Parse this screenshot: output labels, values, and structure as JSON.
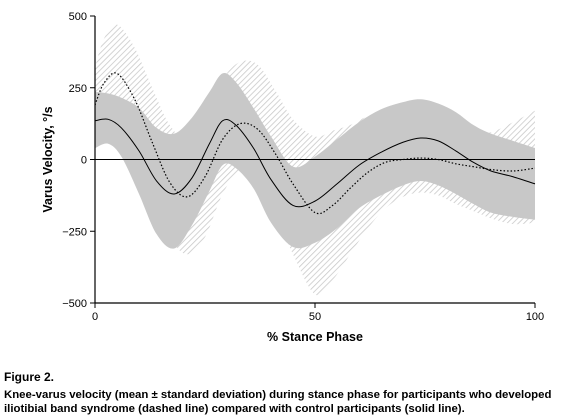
{
  "figure": {
    "label": "Figure 2.",
    "caption": "Knee-varus velocity (mean ± standard deviation) during stance phase for participants who developed iliotibial band syndrome (dashed line) compared with control participants (solid line)."
  },
  "chart_data": {
    "type": "line",
    "xlabel": "% Stance Phase",
    "ylabel": "Varus Velocity, °/s",
    "xlim": [
      0,
      100
    ],
    "ylim": [
      -500,
      500
    ],
    "xticks": [
      "0",
      "50",
      "100"
    ],
    "yticks": [
      "-500",
      "-250",
      "0",
      "250",
      "500"
    ],
    "grid": false,
    "reference_line_y": 0,
    "series": [
      {
        "style": "solid",
        "x": [
          0,
          3,
          6,
          10,
          14,
          18,
          22,
          26,
          29,
          32,
          36,
          40,
          45,
          50,
          55,
          60,
          65,
          70,
          74,
          78,
          82,
          86,
          90,
          95,
          100
        ],
        "mean": [
          135,
          140,
          110,
          30,
          -75,
          -120,
          -65,
          55,
          135,
          120,
          40,
          -70,
          -160,
          -145,
          -85,
          -20,
          25,
          60,
          75,
          65,
          30,
          -10,
          -40,
          -60,
          -85
        ],
        "lower": [
          40,
          55,
          10,
          -120,
          -260,
          -310,
          -230,
          -110,
          -20,
          -30,
          -100,
          -220,
          -305,
          -290,
          -240,
          -170,
          -125,
          -90,
          -75,
          -90,
          -120,
          -155,
          -185,
          -200,
          -210
        ],
        "upper": [
          235,
          230,
          215,
          180,
          110,
          90,
          145,
          235,
          300,
          270,
          180,
          80,
          -25,
          10,
          70,
          130,
          175,
          200,
          210,
          195,
          165,
          120,
          90,
          65,
          40
        ]
      },
      {
        "style": "dashed",
        "x": [
          0,
          2,
          5,
          9,
          13,
          17,
          21,
          25,
          29,
          33,
          37,
          41,
          45,
          50,
          54,
          58,
          62,
          66,
          70,
          74,
          78,
          82,
          86,
          90,
          95,
          100
        ],
        "mean": [
          190,
          265,
          300,
          210,
          60,
          -80,
          -130,
          -60,
          70,
          125,
          105,
          20,
          -85,
          -185,
          -160,
          -100,
          -45,
          -10,
          0,
          5,
          0,
          -15,
          -25,
          -35,
          -40,
          -30
        ],
        "lower": [
          60,
          120,
          150,
          40,
          -120,
          -270,
          -330,
          -270,
          -120,
          -40,
          -80,
          -190,
          -330,
          -470,
          -420,
          -330,
          -240,
          -170,
          -130,
          -115,
          -125,
          -155,
          -180,
          -205,
          -225,
          -220
        ],
        "upper": [
          320,
          420,
          470,
          390,
          250,
          120,
          70,
          160,
          280,
          340,
          330,
          240,
          140,
          80,
          100,
          120,
          150,
          150,
          130,
          120,
          120,
          110,
          100,
          95,
          130,
          170
        ]
      }
    ]
  }
}
